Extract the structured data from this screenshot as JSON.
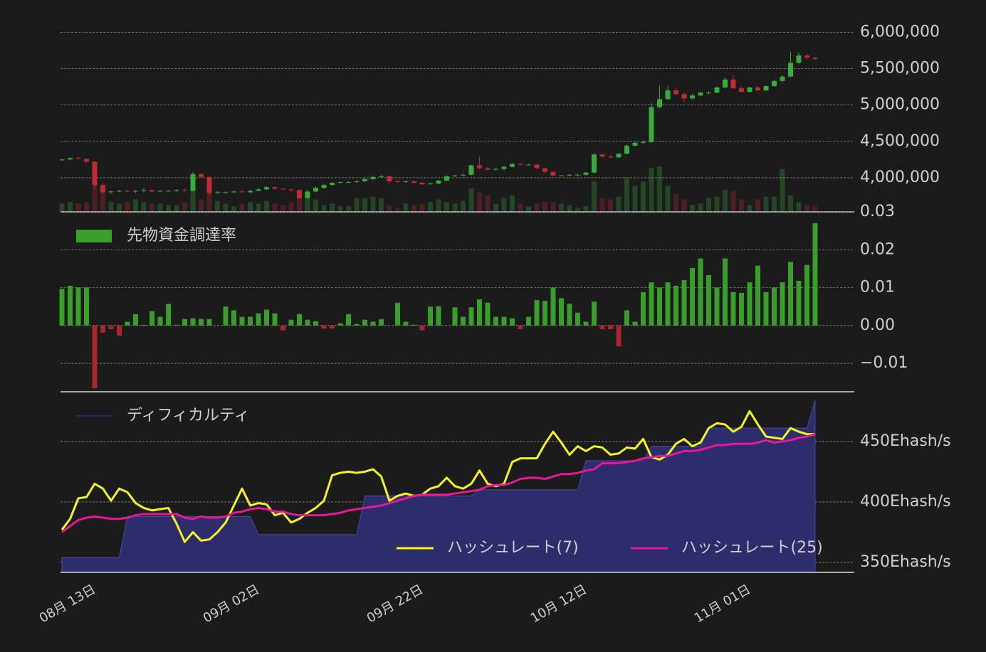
{
  "chart_data": [
    {
      "type": "candlestick",
      "open": [
        4240000,
        4250000,
        4270000,
        4260000,
        4220000,
        3900000,
        3800000,
        3810000,
        3820000,
        3810000,
        3820000,
        3830000,
        3810000,
        3820000,
        3820000,
        3830000,
        3820000,
        4050000,
        4010000,
        3790000,
        3800000,
        3800000,
        3810000,
        3800000,
        3820000,
        3840000,
        3870000,
        3850000,
        3840000,
        3830000,
        3720000,
        3810000,
        3860000,
        3900000,
        3930000,
        3940000,
        3940000,
        3950000,
        3980000,
        4010000,
        4020000,
        3950000,
        3940000,
        3950000,
        3930000,
        3910000,
        3920000,
        3960000,
        4020000,
        4030000,
        4040000,
        4170000,
        4130000,
        4110000,
        4120000,
        4150000,
        4190000,
        4180000,
        4180000,
        4130000,
        4080000,
        4030000,
        4030000,
        4040000,
        4040000,
        4070000,
        4320000,
        4290000,
        4280000,
        4330000,
        4440000,
        4480000,
        4490000,
        4970000,
        5080000,
        5200000,
        5150000,
        5090000,
        5130000,
        5170000,
        5170000,
        5240000,
        5350000,
        5230000,
        5180000,
        5240000,
        5200000,
        5260000,
        5330000,
        5390000,
        5580000,
        5680000,
        5650000
      ],
      "high": [
        4260000,
        4280000,
        4280000,
        4270000,
        4230000,
        3930000,
        3820000,
        3830000,
        3830000,
        3830000,
        3860000,
        3840000,
        3830000,
        3830000,
        3840000,
        3850000,
        4080000,
        4060000,
        4020000,
        3820000,
        3810000,
        3820000,
        3830000,
        3830000,
        3860000,
        3880000,
        3880000,
        3860000,
        3850000,
        3840000,
        3830000,
        3880000,
        3910000,
        3940000,
        3950000,
        3950000,
        3960000,
        4010000,
        4030000,
        4040000,
        4030000,
        3960000,
        3960000,
        3960000,
        3940000,
        3930000,
        3970000,
        4030000,
        4040000,
        4050000,
        4180000,
        4290000,
        4150000,
        4140000,
        4160000,
        4200000,
        4200000,
        4190000,
        4190000,
        4140000,
        4090000,
        4040000,
        4050000,
        4060000,
        4080000,
        4340000,
        4330000,
        4310000,
        4340000,
        4460000,
        4500000,
        4510000,
        5030000,
        5260000,
        5260000,
        5240000,
        5170000,
        5150000,
        5180000,
        5190000,
        5260000,
        5380000,
        5410000,
        5250000,
        5250000,
        5260000,
        5270000,
        5350000,
        5410000,
        5730000,
        5720000,
        5700000,
        5660000
      ],
      "low": [
        4230000,
        4240000,
        4250000,
        4200000,
        3850000,
        3780000,
        3780000,
        3800000,
        3800000,
        3790000,
        3800000,
        3800000,
        3800000,
        3810000,
        3800000,
        3800000,
        3810000,
        3990000,
        3770000,
        3780000,
        3780000,
        3790000,
        3790000,
        3790000,
        3810000,
        3830000,
        3840000,
        3830000,
        3800000,
        3700000,
        3710000,
        3800000,
        3850000,
        3890000,
        3920000,
        3930000,
        3930000,
        3940000,
        3970000,
        4000000,
        3930000,
        3930000,
        3930000,
        3920000,
        3900000,
        3900000,
        3910000,
        3950000,
        4010000,
        4020000,
        4030000,
        4120000,
        4100000,
        4100000,
        4100000,
        4140000,
        4170000,
        4170000,
        4120000,
        4070000,
        4020000,
        4020000,
        4020000,
        4030000,
        4030000,
        4060000,
        4270000,
        4270000,
        4270000,
        4320000,
        4430000,
        4470000,
        4480000,
        4950000,
        5070000,
        5130000,
        5030000,
        5080000,
        5110000,
        5150000,
        5160000,
        5230000,
        5220000,
        5170000,
        5170000,
        5190000,
        5190000,
        5250000,
        5310000,
        5380000,
        5570000,
        5630000,
        5620000
      ],
      "close": [
        4250000,
        4270000,
        4260000,
        4220000,
        3900000,
        3800000,
        3810000,
        3820000,
        3810000,
        3820000,
        3830000,
        3810000,
        3820000,
        3820000,
        3830000,
        3820000,
        4050000,
        4010000,
        3790000,
        3800000,
        3800000,
        3810000,
        3800000,
        3820000,
        3840000,
        3870000,
        3850000,
        3840000,
        3830000,
        3720000,
        3810000,
        3860000,
        3900000,
        3930000,
        3940000,
        3940000,
        3950000,
        3980000,
        4010000,
        4020000,
        3950000,
        3940000,
        3950000,
        3930000,
        3910000,
        3920000,
        3960000,
        4020000,
        4030000,
        4040000,
        4170000,
        4130000,
        4110000,
        4120000,
        4150000,
        4190000,
        4180000,
        4180000,
        4130000,
        4080000,
        4030000,
        4030000,
        4040000,
        4040000,
        4070000,
        4320000,
        4290000,
        4280000,
        4330000,
        4440000,
        4480000,
        4490000,
        4970000,
        5080000,
        5200000,
        5150000,
        5090000,
        5130000,
        5170000,
        5170000,
        5240000,
        5350000,
        5230000,
        5180000,
        5240000,
        5200000,
        5260000,
        5330000,
        5390000,
        5580000,
        5680000,
        5650000,
        5630000
      ],
      "volume": [
        12,
        14,
        12,
        14,
        40,
        30,
        14,
        12,
        14,
        18,
        14,
        12,
        12,
        10,
        10,
        14,
        52,
        18,
        40,
        16,
        12,
        8,
        12,
        14,
        12,
        16,
        12,
        10,
        14,
        30,
        20,
        18,
        10,
        12,
        8,
        8,
        20,
        20,
        22,
        20,
        10,
        6,
        12,
        10,
        12,
        14,
        18,
        14,
        12,
        16,
        34,
        28,
        24,
        12,
        20,
        24,
        12,
        8,
        12,
        14,
        14,
        12,
        10,
        6,
        8,
        44,
        20,
        18,
        22,
        50,
        38,
        44,
        64,
        66,
        38,
        26,
        18,
        10,
        12,
        20,
        22,
        32,
        30,
        18,
        10,
        18,
        22,
        22,
        62,
        24,
        14,
        10,
        8
      ],
      "up_color": "#3aab3a",
      "down_color": "#c02a35",
      "ylim": [
        3530000,
        6150000
      ],
      "yticks": [
        {
          "value": 4000000,
          "label": "4,000,000"
        },
        {
          "value": 4500000,
          "label": "4,500,000"
        },
        {
          "value": 5000000,
          "label": "5,000,000"
        },
        {
          "value": 5500000,
          "label": "5,500,000"
        },
        {
          "value": 6000000,
          "label": "6,000,000"
        }
      ],
      "grid": true
    },
    {
      "type": "bar",
      "series": [
        {
          "name": "先物資金調達率",
          "color": "#3a9e2a",
          "values": [
            0.0097,
            0.0105,
            0.01,
            0.01,
            -0.0166,
            -0.0019,
            -0.001,
            -0.0027,
            0.001,
            0.003,
            0.0002,
            0.0038,
            0.0023,
            0.0057,
            0.0002,
            0.0017,
            0.0019,
            0.0017,
            0.0017,
            0,
            0.005,
            0.004,
            0.0023,
            0.0023,
            0.0032,
            0.0042,
            0.0032,
            -0.0013,
            0.0015,
            0.003,
            0.0015,
            0.0011,
            -0.0008,
            -0.0008,
            0.0006,
            0.003,
            0.0004,
            0.0015,
            0.001,
            0.0017,
            0,
            0.006,
            0.001,
            0.0002,
            -0.0013,
            0.005,
            0.0051,
            0,
            0.0048,
            0.0023,
            0.0048,
            0.0069,
            0.006,
            0.0023,
            0.0023,
            0.0019,
            -0.001,
            0.0023,
            0.0067,
            0.0065,
            0.01,
            0.0072,
            0.0057,
            0.0034,
            0.001,
            0.0063,
            -0.001,
            -0.001,
            -0.0055,
            0.004,
            0.001,
            0.0088,
            0.0114,
            0.01,
            0.0114,
            0.0105,
            0.012,
            0.0152,
            0.0177,
            0.0133,
            0.01,
            0.0177,
            0.0088,
            0.0086,
            0.0114,
            0.0158,
            0.0088,
            0.01,
            0.0114,
            0.0168,
            0.0118,
            0.016,
            0.027
          ]
        }
      ],
      "negative_color": "#a8262c",
      "ylim": [
        -0.0175,
        0.03
      ],
      "yticks": [
        {
          "value": -0.01,
          "label": "−0.01"
        },
        {
          "value": 0,
          "label": "0.00"
        },
        0.01,
        0.02,
        0.03
      ],
      "grid": true
    },
    {
      "type": "line",
      "categories": [
        null,
        null,
        null,
        null,
        "08月 13日",
        null,
        null,
        null,
        null,
        null,
        null,
        null,
        null,
        null,
        null,
        null,
        null,
        null,
        null,
        null,
        null,
        null,
        null,
        null,
        "09月 02日",
        null,
        null,
        null,
        null,
        null,
        null,
        null,
        null,
        null,
        null,
        null,
        null,
        null,
        null,
        null,
        null,
        null,
        null,
        null,
        "09月 22日",
        null,
        null,
        null,
        null,
        null,
        null,
        null,
        null,
        null,
        null,
        null,
        null,
        null,
        null,
        null,
        null,
        null,
        null,
        null,
        "10月 12日",
        null,
        null,
        null,
        null,
        null,
        null,
        null,
        null,
        null,
        null,
        null,
        null,
        null,
        null,
        null,
        null,
        null,
        null,
        null,
        "11月 01日",
        null,
        null,
        null,
        null,
        null,
        null,
        null,
        null
      ],
      "series": [
        {
          "name": "ディフィカルティ",
          "type": "area",
          "color": "#2d2d6c",
          "values": [
            354,
            354,
            354,
            354,
            354,
            354,
            354,
            354,
            388,
            388,
            388,
            388,
            388,
            388,
            388,
            388,
            388,
            388,
            388,
            388,
            388,
            388,
            388,
            388,
            373,
            373,
            373,
            373,
            373,
            373,
            373,
            373,
            373,
            373,
            373,
            373,
            373,
            405,
            405,
            405,
            405,
            405,
            405,
            405,
            405,
            405,
            405,
            405,
            405,
            405,
            405,
            410,
            410,
            410,
            410,
            410,
            410,
            410,
            410,
            410,
            410,
            410,
            410,
            410,
            434,
            434,
            434,
            434,
            434,
            434,
            434,
            434,
            446,
            446,
            446,
            446,
            446,
            446,
            446,
            461,
            461,
            461,
            461,
            461,
            461,
            461,
            461,
            461,
            461,
            461,
            461,
            461,
            484
          ]
        },
        {
          "name": "ハッシュレート(7)",
          "type": "line",
          "color": "#f5f522",
          "values": [
            377,
            386,
            403,
            404,
            415,
            411,
            401,
            411,
            408,
            399,
            395,
            393,
            394,
            395,
            382,
            367,
            375,
            368,
            369,
            375,
            383,
            397,
            411,
            397,
            399,
            398,
            389,
            391,
            383,
            386,
            391,
            395,
            401,
            422,
            424,
            425,
            424,
            425,
            427,
            421,
            401,
            405,
            407,
            405,
            406,
            411,
            413,
            420,
            413,
            411,
            415,
            426,
            415,
            413,
            415,
            433,
            436,
            436,
            436,
            448,
            458,
            449,
            439,
            446,
            442,
            446,
            445,
            439,
            440,
            445,
            444,
            452,
            437,
            435,
            439,
            448,
            452,
            446,
            449,
            461,
            465,
            464,
            458,
            462,
            475,
            464,
            454,
            453,
            452,
            461,
            458,
            456,
            456
          ]
        },
        {
          "name": "ハッシュレート(25)",
          "type": "line",
          "color": "#e8189a",
          "values": [
            375,
            380,
            385,
            387,
            388,
            387,
            386,
            386,
            387,
            389,
            390,
            390,
            390,
            390,
            390,
            387,
            386,
            388,
            387,
            387,
            388,
            391,
            392,
            394,
            395,
            394,
            392,
            392,
            390,
            389,
            389,
            389,
            389,
            390,
            391,
            393,
            394,
            395,
            396,
            397,
            399,
            401,
            403,
            405,
            406,
            406,
            406,
            406,
            407,
            408,
            409,
            410,
            413,
            414,
            414,
            416,
            419,
            420,
            420,
            419,
            421,
            423,
            423,
            424,
            426,
            427,
            432,
            432,
            432,
            433,
            434,
            436,
            437,
            438,
            438,
            440,
            442,
            442,
            443,
            445,
            447,
            447,
            448,
            448,
            448,
            449,
            451,
            449,
            450,
            451,
            453,
            454,
            456
          ]
        }
      ],
      "ylim": [
        341.8,
        491
      ],
      "yticks": [
        {
          "value": 350,
          "label": "350Ehash/s"
        },
        {
          "value": 400,
          "label": "400Ehash/s"
        },
        {
          "value": 450,
          "label": "450Ehash/s"
        }
      ],
      "grid": true
    }
  ]
}
